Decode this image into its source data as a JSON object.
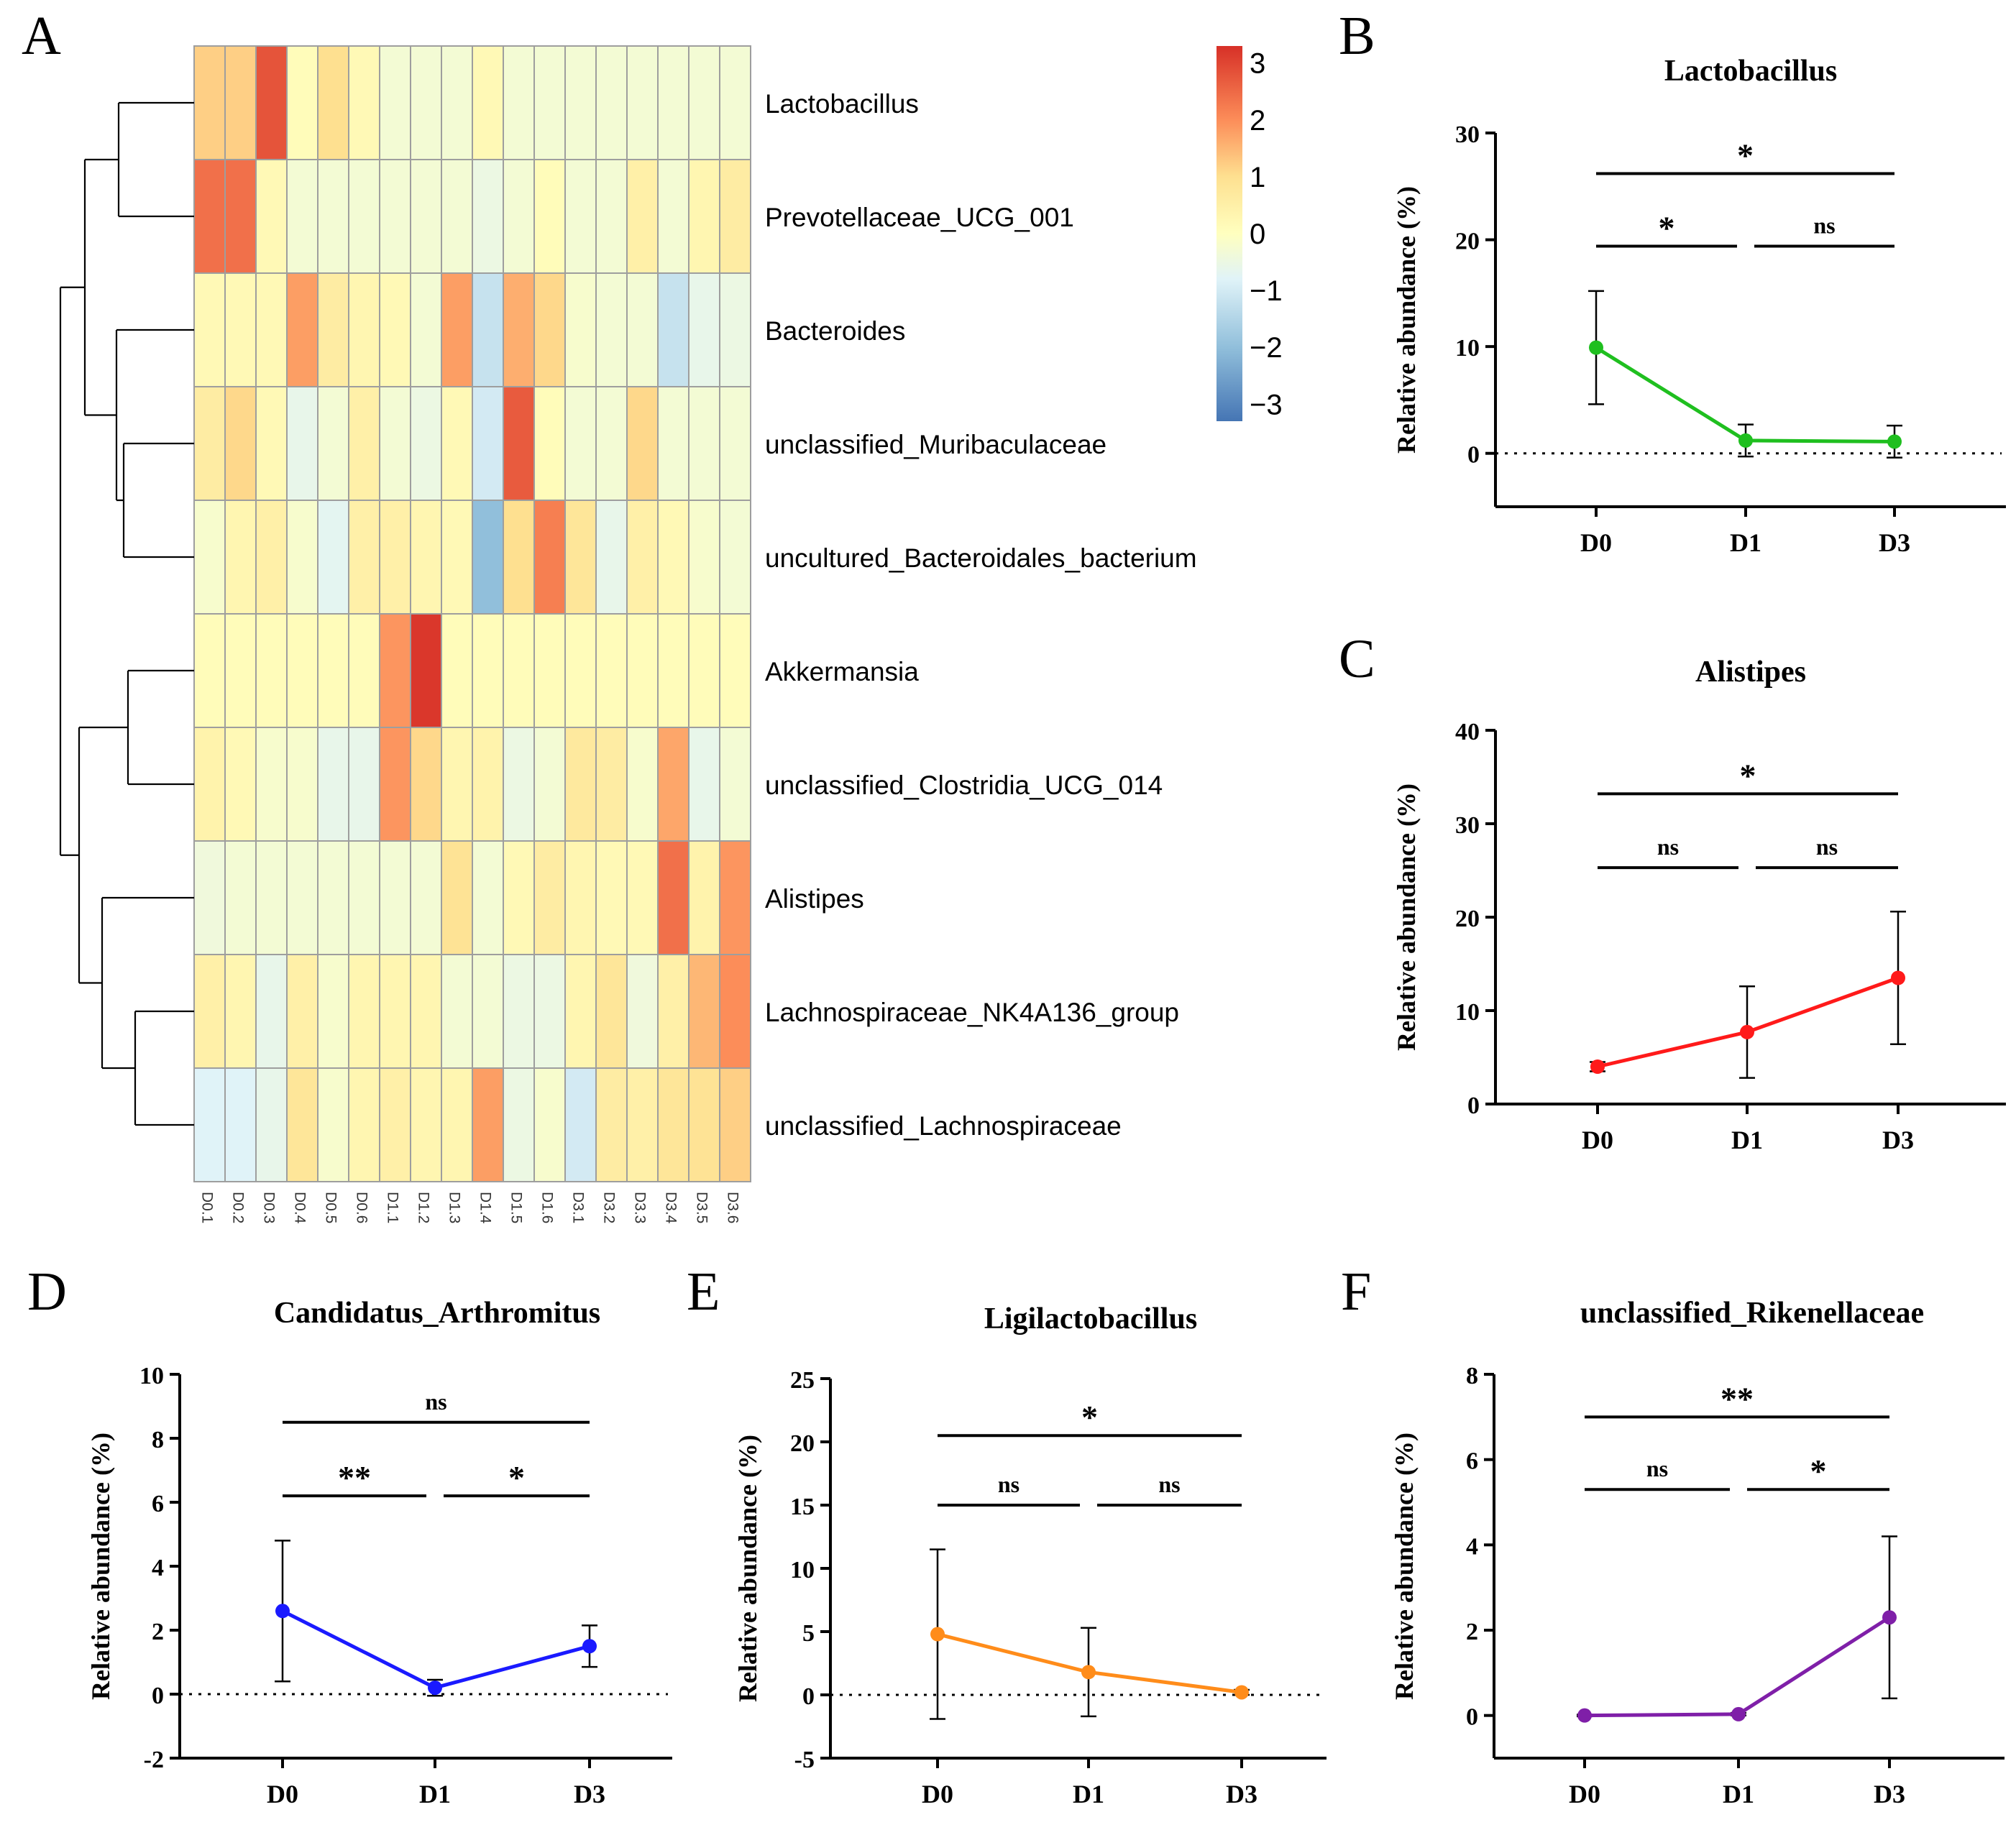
{
  "figure": {
    "panel_labels": [
      "A",
      "B",
      "C",
      "D",
      "E",
      "F"
    ],
    "palette": {
      "heat_low": "#4575b4",
      "heat_lowmid": "#91bfdb",
      "heat_mid_low": "#e0f3f8",
      "heat_mid": "#ffffbf",
      "heat_mid_high": "#fee090",
      "heat_highmid": "#fc8d59",
      "heat_high": "#d73027",
      "cell_border": "#9e9e9e",
      "axis": "#000000"
    }
  },
  "chart_data": [
    {
      "panel": "A",
      "type": "heatmap",
      "title": "",
      "columns": [
        "D0.1",
        "D0.2",
        "D0.3",
        "D0.4",
        "D0.5",
        "D0.6",
        "D1.1",
        "D1.2",
        "D1.3",
        "D1.4",
        "D1.5",
        "D1.6",
        "D3.1",
        "D3.2",
        "D3.3",
        "D3.4",
        "D3.5",
        "D3.6"
      ],
      "rows": [
        "Lactobacillus",
        "Prevotellaceae_UCG_001",
        "Bacteroides",
        "unclassified_Muribaculaceae",
        "uncultured_Bacteroidales_bacterium",
        "Akkermansia",
        "unclassified_Clostridia_UCG_014",
        "Alistipes",
        "Lachnospiraceae_NK4A136_group",
        "unclassified_Lachnospiraceae"
      ],
      "values": [
        [
          1.2,
          1.2,
          2.8,
          0.1,
          1.0,
          0.2,
          -0.3,
          -0.3,
          -0.3,
          0.2,
          -0.3,
          -0.3,
          -0.3,
          -0.3,
          -0.3,
          -0.3,
          -0.3,
          -0.3
        ],
        [
          2.4,
          2.4,
          0.2,
          -0.3,
          -0.3,
          -0.3,
          -0.3,
          -0.3,
          -0.3,
          -0.5,
          -0.3,
          0.1,
          -0.3,
          -0.3,
          0.5,
          -0.3,
          0.3,
          0.6
        ],
        [
          0.2,
          0.2,
          0.2,
          1.8,
          0.6,
          0.3,
          0.2,
          -0.3,
          1.8,
          -1.2,
          1.6,
          1.1,
          -0.2,
          -0.3,
          -0.3,
          -1.2,
          -0.6,
          -0.5
        ],
        [
          0.6,
          1.1,
          0.2,
          -0.6,
          -0.3,
          0.5,
          -0.3,
          -0.5,
          0.2,
          -1.0,
          2.7,
          0.1,
          -0.3,
          -0.3,
          1.1,
          -0.3,
          -0.3,
          -0.3
        ],
        [
          -0.2,
          0.3,
          0.5,
          -0.2,
          -0.7,
          0.5,
          0.5,
          0.3,
          0.2,
          -2.0,
          1.0,
          2.2,
          0.8,
          -0.6,
          0.5,
          0.2,
          -0.2,
          -0.3
        ],
        [
          0.1,
          0.1,
          0.1,
          0.1,
          0.1,
          0.1,
          1.9,
          3.2,
          0.1,
          0.1,
          0.1,
          0.1,
          0.1,
          0.1,
          0.1,
          0.1,
          0.1,
          0.1
        ],
        [
          0.4,
          0.2,
          -0.2,
          -0.2,
          -0.6,
          -0.6,
          1.9,
          1.1,
          0.3,
          0.4,
          -0.5,
          -0.3,
          0.7,
          0.6,
          -0.2,
          1.7,
          -0.6,
          -0.3
        ],
        [
          -0.4,
          -0.3,
          -0.3,
          -0.3,
          -0.3,
          -0.3,
          -0.3,
          -0.3,
          0.9,
          -0.3,
          0.2,
          0.6,
          0.3,
          0.2,
          0.2,
          2.4,
          0.4,
          1.9
        ],
        [
          0.5,
          0.3,
          -0.6,
          0.5,
          -0.2,
          0.3,
          0.3,
          0.3,
          -0.3,
          -0.3,
          -0.5,
          -0.5,
          0.3,
          0.8,
          -0.4,
          0.5,
          1.5,
          2.0
        ],
        [
          -0.8,
          -0.8,
          -0.6,
          0.8,
          -0.2,
          0.3,
          0.5,
          0.3,
          0.3,
          1.8,
          -0.5,
          -0.2,
          -1.0,
          0.6,
          0.5,
          0.8,
          0.9,
          1.2
        ]
      ],
      "colorbar": {
        "range": [
          -3.3,
          3.3
        ],
        "ticks": [
          3,
          2,
          1,
          0,
          -1,
          -2,
          -3
        ],
        "tick_labels": [
          "3",
          "2",
          "1",
          "0",
          "−1",
          "−2",
          "−3"
        ]
      },
      "row_dendrogram": true
    },
    {
      "panel": "B",
      "type": "line",
      "title": "Lactobacillus",
      "ylabel": "Relative abundance (%)",
      "xlabel": "",
      "categories": [
        "D0",
        "D1",
        "D3"
      ],
      "values": [
        9.9,
        1.2,
        1.1
      ],
      "error": [
        5.3,
        1.5,
        1.5
      ],
      "ylim": [
        -5,
        30
      ],
      "yticks": [
        0,
        10,
        20,
        30
      ],
      "color": "#1fbf1f",
      "zero_line": true,
      "significance": [
        {
          "from": 0,
          "to": 2,
          "label": "*",
          "y": 26.2
        },
        {
          "from": 0,
          "to": 1,
          "label": "*",
          "y": 19.4
        },
        {
          "from": 1,
          "to": 2,
          "label": "ns",
          "y": 19.4
        }
      ]
    },
    {
      "panel": "C",
      "type": "line",
      "title": "Alistipes",
      "ylabel": "Relative abundance (%)",
      "xlabel": "",
      "categories": [
        "D0",
        "D1",
        "D3"
      ],
      "values": [
        4.0,
        7.7,
        13.5
      ],
      "error": [
        0.5,
        4.9,
        7.1
      ],
      "ylim": [
        0,
        40
      ],
      "yticks": [
        0,
        10,
        20,
        30,
        40
      ],
      "color": "#ff1a1a",
      "zero_line": false,
      "significance": [
        {
          "from": 0,
          "to": 2,
          "label": "*",
          "y": 33.2
        },
        {
          "from": 0,
          "to": 1,
          "label": "ns",
          "y": 25.3
        },
        {
          "from": 1,
          "to": 2,
          "label": "ns",
          "y": 25.3
        }
      ]
    },
    {
      "panel": "D",
      "type": "line",
      "title": "Candidatus_Arthromitus",
      "ylabel": "Relative abundance (%)",
      "xlabel": "",
      "categories": [
        "D0",
        "D1",
        "D3"
      ],
      "values": [
        2.6,
        0.2,
        1.5
      ],
      "error": [
        2.2,
        0.25,
        0.65
      ],
      "ylim": [
        -2,
        10
      ],
      "yticks": [
        -2,
        0,
        2,
        4,
        6,
        8,
        10
      ],
      "color": "#1a1aff",
      "zero_line": true,
      "significance": [
        {
          "from": 0,
          "to": 2,
          "label": "ns",
          "y": 8.5
        },
        {
          "from": 0,
          "to": 1,
          "label": "**",
          "y": 6.2
        },
        {
          "from": 1,
          "to": 2,
          "label": "*",
          "y": 6.2
        }
      ]
    },
    {
      "panel": "E",
      "type": "line",
      "title": "Ligilactobacillus",
      "ylabel": "Relative abundance (%)",
      "xlabel": "",
      "categories": [
        "D0",
        "D1",
        "D3"
      ],
      "values": [
        4.8,
        1.8,
        0.2
      ],
      "error": [
        6.7,
        3.5,
        0.2
      ],
      "ylim": [
        -5,
        25
      ],
      "yticks": [
        -5,
        0,
        5,
        10,
        15,
        20,
        25
      ],
      "color": "#ff8c1a",
      "zero_line": true,
      "significance": [
        {
          "from": 0,
          "to": 2,
          "label": "*",
          "y": 20.5
        },
        {
          "from": 0,
          "to": 1,
          "label": "ns",
          "y": 15.0
        },
        {
          "from": 1,
          "to": 2,
          "label": "ns",
          "y": 15.0
        }
      ]
    },
    {
      "panel": "F",
      "type": "line",
      "title": "unclassified_Rikenellaceae",
      "ylabel": "Relative abundance (%)",
      "xlabel": "",
      "categories": [
        "D0",
        "D1",
        "D3"
      ],
      "values": [
        0.0,
        0.03,
        2.3
      ],
      "error": [
        0.02,
        0.03,
        1.9
      ],
      "ylim": [
        -1,
        8
      ],
      "yticks": [
        0,
        2,
        4,
        6,
        8
      ],
      "color": "#7f1fa8",
      "zero_line": false,
      "significance": [
        {
          "from": 0,
          "to": 2,
          "label": "**",
          "y": 7.0
        },
        {
          "from": 0,
          "to": 1,
          "label": "ns",
          "y": 5.3
        },
        {
          "from": 1,
          "to": 2,
          "label": "*",
          "y": 5.3
        }
      ]
    }
  ]
}
